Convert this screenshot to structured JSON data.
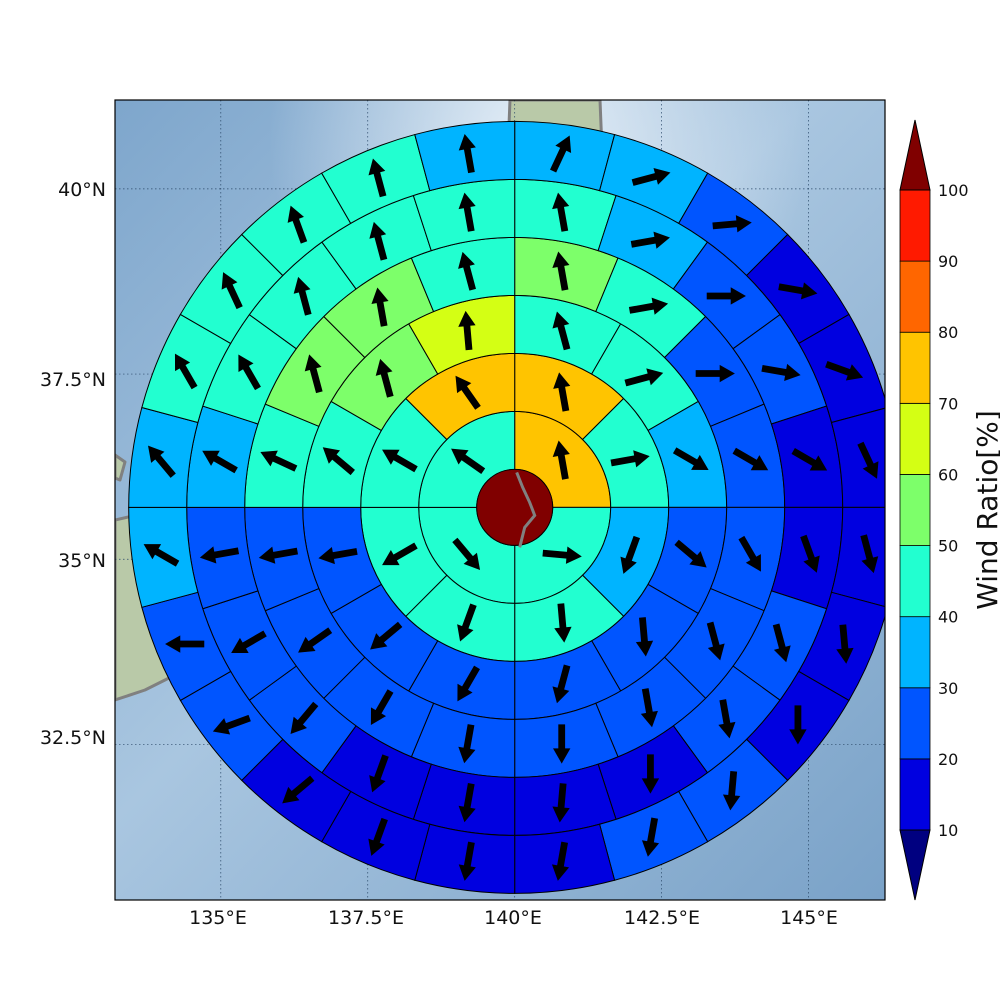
{
  "map": {
    "lon_range": [
      133.2,
      146.3
    ],
    "lat_range": [
      30.4,
      41.2
    ],
    "grid_lons": [
      135,
      137.5,
      140,
      142.5,
      145
    ],
    "grid_lats": [
      32.5,
      35,
      37.5,
      40
    ],
    "lon_labels": [
      "135°E",
      "137.5°E",
      "140°E",
      "142.5°E",
      "145°E"
    ],
    "lat_labels": [
      "32.5°N",
      "35°N",
      "37.5°N",
      "40°N"
    ],
    "ocean_color": "#8fb3d4",
    "land_color": "#b9c9a8",
    "coast_color": "#808080"
  },
  "polar_grid": {
    "center_lon": 140.0,
    "center_lat": 35.7,
    "ring_count": 6,
    "center_value": 100,
    "rings": [
      {
        "sectors": 4,
        "values": [
          70,
          45,
          45,
          45
        ],
        "wind_dir": [
          350,
          95,
          140,
          305
        ]
      },
      {
        "sectors": 8,
        "values": [
          70,
          45,
          35,
          45,
          45,
          45,
          45,
          70
        ],
        "wind_dir": [
          350,
          80,
          200,
          175,
          200,
          240,
          300,
          325
        ]
      },
      {
        "sectors": 12,
        "values": [
          45,
          40,
          35,
          25,
          20,
          20,
          25,
          25,
          20,
          45,
          55,
          60
        ],
        "wind_dir": [
          345,
          75,
          120,
          130,
          175,
          195,
          210,
          230,
          260,
          310,
          345,
          355
        ]
      },
      {
        "sectors": 16,
        "values": [
          55,
          40,
          20,
          20,
          20,
          25,
          20,
          20,
          20,
          20,
          20,
          25,
          40,
          55,
          55,
          45
        ],
        "wind_dir": [
          350,
          80,
          90,
          120,
          150,
          165,
          170,
          180,
          190,
          210,
          235,
          260,
          295,
          345,
          350,
          345
        ]
      },
      {
        "sectors": 20,
        "values": [
          45,
          35,
          25,
          20,
          15,
          15,
          20,
          20,
          15,
          15,
          15,
          15,
          20,
          20,
          25,
          30,
          40,
          45,
          45,
          45
        ],
        "wind_dir": [
          350,
          80,
          90,
          100,
          120,
          160,
          165,
          170,
          180,
          185,
          190,
          200,
          220,
          240,
          260,
          300,
          330,
          345,
          345,
          350
        ]
      },
      {
        "sectors": 24,
        "values": [
          35,
          35,
          20,
          15,
          15,
          15,
          15,
          15,
          15,
          20,
          20,
          15,
          15,
          15,
          15,
          20,
          20,
          30,
          30,
          40,
          40,
          45,
          40,
          35
        ],
        "wind_dir": [
          25,
          75,
          85,
          100,
          110,
          155,
          165,
          175,
          180,
          185,
          190,
          190,
          190,
          200,
          230,
          250,
          270,
          300,
          320,
          330,
          335,
          340,
          345,
          350
        ]
      }
    ]
  },
  "colorbar": {
    "title": "Wind Ratio[%]",
    "ticks": [
      "10",
      "20",
      "30",
      "40",
      "50",
      "60",
      "70",
      "80",
      "90",
      "100"
    ],
    "levels": [
      10,
      20,
      30,
      40,
      50,
      60,
      70,
      80,
      90,
      100
    ],
    "colors": [
      "#0000e0",
      "#0055ff",
      "#00b4ff",
      "#22ffd0",
      "#7dff6a",
      "#d4ff14",
      "#ffc400",
      "#ff6600",
      "#ff1a00",
      "#800000"
    ],
    "under_color": "#000080",
    "over_color": "#800000"
  }
}
